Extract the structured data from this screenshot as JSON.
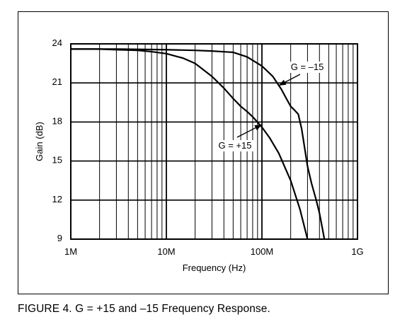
{
  "caption": "FIGURE 4. G = +15 and –15 Frequency Response.",
  "chart_data": {
    "type": "line",
    "title": "",
    "xlabel": "Frequency (Hz)",
    "ylabel": "Gain (dB)",
    "x_scale": "log",
    "xlim": [
      1000000,
      1000000000
    ],
    "ylim": [
      9,
      24
    ],
    "x_ticks": [
      {
        "value": 1000000,
        "label": "1M"
      },
      {
        "value": 10000000,
        "label": "10M"
      },
      {
        "value": 100000000,
        "label": "100M"
      },
      {
        "value": 1000000000,
        "label": "1G"
      }
    ],
    "y_ticks": [
      {
        "value": 24,
        "label": "24"
      },
      {
        "value": 21,
        "label": "21"
      },
      {
        "value": 18,
        "label": "18"
      },
      {
        "value": 15,
        "label": "15"
      },
      {
        "value": 12,
        "label": "12"
      },
      {
        "value": 9,
        "label": "9"
      }
    ],
    "grid": true,
    "series": [
      {
        "name": "G = +15",
        "x": [
          1000000,
          2000000,
          3000000,
          5000000,
          7000000,
          10000000,
          15000000,
          20000000,
          30000000,
          40000000,
          50000000,
          60000000,
          70000000,
          80000000,
          100000000,
          120000000,
          150000000,
          200000000,
          250000000,
          300000000
        ],
        "y": [
          23.6,
          23.6,
          23.55,
          23.5,
          23.4,
          23.25,
          22.9,
          22.5,
          21.5,
          20.6,
          19.8,
          19.2,
          18.8,
          18.4,
          17.6,
          16.8,
          15.6,
          13.5,
          11.3,
          9.0
        ]
      },
      {
        "name": "G = –15",
        "x": [
          1000000,
          3000000,
          10000000,
          20000000,
          30000000,
          50000000,
          70000000,
          100000000,
          130000000,
          160000000,
          180000000,
          200000000,
          220000000,
          240000000,
          260000000,
          280000000,
          300000000,
          330000000,
          370000000,
          400000000,
          430000000,
          450000000
        ],
        "y": [
          23.6,
          23.6,
          23.55,
          23.5,
          23.45,
          23.35,
          23.0,
          22.3,
          21.5,
          20.5,
          19.8,
          19.2,
          18.9,
          18.6,
          17.5,
          16.0,
          14.6,
          13.3,
          12.0,
          11.0,
          9.8,
          9.0
        ]
      }
    ],
    "annotations": [
      {
        "text": "G = –15",
        "series": "G = –15",
        "arrow_to": {
          "x": 150000000,
          "y": 20.8
        }
      },
      {
        "text": "G = +15",
        "series": "G = +15",
        "arrow_to": {
          "x": 100000000,
          "y": 17.8
        }
      }
    ],
    "legend": "none"
  }
}
